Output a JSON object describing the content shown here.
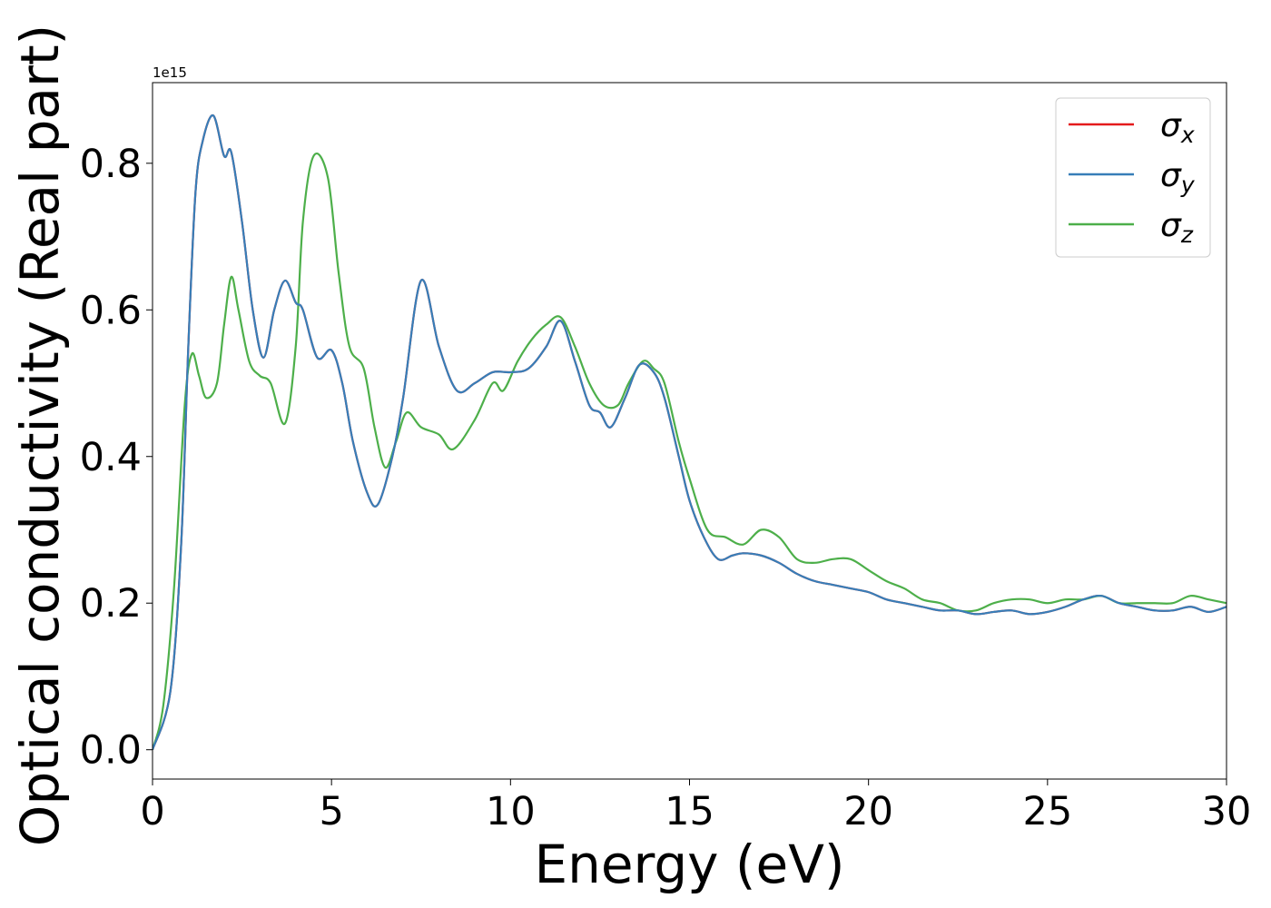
{
  "chart_data": {
    "type": "line",
    "title": "",
    "xlabel": "Energy (eV)",
    "ylabel": "Optical conductivity (Real part)",
    "offset_label": "1e15",
    "scale_factor": 1000000000000000.0,
    "xlim": [
      0,
      30
    ],
    "ylim": [
      -0.04,
      0.91
    ],
    "xticks": [
      0,
      5,
      10,
      15,
      20,
      25,
      30
    ],
    "xtick_labels": [
      "0",
      "5",
      "10",
      "15",
      "20",
      "25",
      "30"
    ],
    "yticks": [
      0.0,
      0.2,
      0.4,
      0.6,
      0.8
    ],
    "ytick_labels": [
      "0.0",
      "0.2",
      "0.4",
      "0.6",
      "0.8"
    ],
    "grid": false,
    "legend_position": "top-right",
    "series": [
      {
        "name": "σx",
        "legend_symbol": "σ",
        "legend_subscript": "x",
        "color": "#e41a1c",
        "x": [
          0,
          0.5,
          0.8,
          1.0,
          1.2,
          1.4,
          1.7,
          2.0,
          2.2,
          2.5,
          2.8,
          3.1,
          3.4,
          3.7,
          4.0,
          4.2,
          4.6,
          5.0,
          5.3,
          5.6,
          6.0,
          6.3,
          6.7,
          7.0,
          7.5,
          8.0,
          8.5,
          9.0,
          9.5,
          10.0,
          10.5,
          11.0,
          11.4,
          11.8,
          12.2,
          12.5,
          12.8,
          13.2,
          13.6,
          14.0,
          14.3,
          14.7,
          15.0,
          15.4,
          15.8,
          16.2,
          16.5,
          17.0,
          17.5,
          18.0,
          18.5,
          19.0,
          19.5,
          20.0,
          20.5,
          21.0,
          21.5,
          22.0,
          22.5,
          23.0,
          23.5,
          24.0,
          24.5,
          25.0,
          25.5,
          26.0,
          26.5,
          27.0,
          27.5,
          28.0,
          28.5,
          29.0,
          29.5,
          30.0
        ],
        "y": [
          0.0,
          0.08,
          0.28,
          0.55,
          0.76,
          0.83,
          0.865,
          0.81,
          0.815,
          0.72,
          0.6,
          0.535,
          0.6,
          0.64,
          0.61,
          0.6,
          0.535,
          0.545,
          0.5,
          0.42,
          0.35,
          0.335,
          0.4,
          0.48,
          0.64,
          0.55,
          0.49,
          0.5,
          0.515,
          0.515,
          0.52,
          0.55,
          0.585,
          0.53,
          0.47,
          0.46,
          0.44,
          0.48,
          0.525,
          0.515,
          0.48,
          0.4,
          0.34,
          0.29,
          0.26,
          0.265,
          0.268,
          0.265,
          0.255,
          0.24,
          0.23,
          0.225,
          0.22,
          0.215,
          0.205,
          0.2,
          0.195,
          0.19,
          0.19,
          0.185,
          0.188,
          0.19,
          0.185,
          0.188,
          0.195,
          0.205,
          0.21,
          0.2,
          0.195,
          0.19,
          0.19,
          0.195,
          0.188,
          0.195
        ]
      },
      {
        "name": "σy",
        "legend_symbol": "σ",
        "legend_subscript": "y",
        "color": "#377eb8",
        "x": [
          0,
          0.5,
          0.8,
          1.0,
          1.2,
          1.4,
          1.7,
          2.0,
          2.2,
          2.5,
          2.8,
          3.1,
          3.4,
          3.7,
          4.0,
          4.2,
          4.6,
          5.0,
          5.3,
          5.6,
          6.0,
          6.3,
          6.7,
          7.0,
          7.5,
          8.0,
          8.5,
          9.0,
          9.5,
          10.0,
          10.5,
          11.0,
          11.4,
          11.8,
          12.2,
          12.5,
          12.8,
          13.2,
          13.6,
          14.0,
          14.3,
          14.7,
          15.0,
          15.4,
          15.8,
          16.2,
          16.5,
          17.0,
          17.5,
          18.0,
          18.5,
          19.0,
          19.5,
          20.0,
          20.5,
          21.0,
          21.5,
          22.0,
          22.5,
          23.0,
          23.5,
          24.0,
          24.5,
          25.0,
          25.5,
          26.0,
          26.5,
          27.0,
          27.5,
          28.0,
          28.5,
          29.0,
          29.5,
          30.0
        ],
        "y": [
          0.0,
          0.08,
          0.28,
          0.55,
          0.76,
          0.83,
          0.865,
          0.81,
          0.815,
          0.72,
          0.6,
          0.535,
          0.6,
          0.64,
          0.61,
          0.6,
          0.535,
          0.545,
          0.5,
          0.42,
          0.35,
          0.335,
          0.4,
          0.48,
          0.64,
          0.55,
          0.49,
          0.5,
          0.515,
          0.515,
          0.52,
          0.55,
          0.585,
          0.53,
          0.47,
          0.46,
          0.44,
          0.48,
          0.525,
          0.515,
          0.48,
          0.4,
          0.34,
          0.29,
          0.26,
          0.265,
          0.268,
          0.265,
          0.255,
          0.24,
          0.23,
          0.225,
          0.22,
          0.215,
          0.205,
          0.2,
          0.195,
          0.19,
          0.19,
          0.185,
          0.188,
          0.19,
          0.185,
          0.188,
          0.195,
          0.205,
          0.21,
          0.2,
          0.195,
          0.19,
          0.19,
          0.195,
          0.188,
          0.195
        ]
      },
      {
        "name": "σz",
        "legend_symbol": "σ",
        "legend_subscript": "z",
        "color": "#4daf4a",
        "x": [
          0,
          0.3,
          0.6,
          0.9,
          1.1,
          1.3,
          1.5,
          1.8,
          2.0,
          2.2,
          2.4,
          2.7,
          3.0,
          3.3,
          3.7,
          4.0,
          4.2,
          4.5,
          4.9,
          5.2,
          5.5,
          5.9,
          6.2,
          6.5,
          6.8,
          7.1,
          7.5,
          8.0,
          8.4,
          9.0,
          9.5,
          9.8,
          10.2,
          10.6,
          11.0,
          11.4,
          11.8,
          12.2,
          12.6,
          13.0,
          13.3,
          13.7,
          14.0,
          14.3,
          14.7,
          15.0,
          15.5,
          16.0,
          16.5,
          17.0,
          17.5,
          18.0,
          18.5,
          19.0,
          19.5,
          20.0,
          20.5,
          21.0,
          21.5,
          22.0,
          22.5,
          23.0,
          23.5,
          24.0,
          24.5,
          25.0,
          25.5,
          26.0,
          26.5,
          27.0,
          27.5,
          28.0,
          28.5,
          29.0,
          29.5,
          30.0
        ],
        "y": [
          0.0,
          0.06,
          0.22,
          0.47,
          0.54,
          0.51,
          0.48,
          0.5,
          0.58,
          0.645,
          0.6,
          0.53,
          0.51,
          0.5,
          0.445,
          0.55,
          0.72,
          0.81,
          0.78,
          0.65,
          0.55,
          0.52,
          0.44,
          0.385,
          0.42,
          0.46,
          0.44,
          0.43,
          0.41,
          0.45,
          0.5,
          0.49,
          0.53,
          0.56,
          0.58,
          0.59,
          0.55,
          0.5,
          0.47,
          0.47,
          0.5,
          0.53,
          0.52,
          0.5,
          0.42,
          0.37,
          0.3,
          0.29,
          0.28,
          0.3,
          0.29,
          0.26,
          0.255,
          0.26,
          0.26,
          0.245,
          0.23,
          0.22,
          0.205,
          0.2,
          0.19,
          0.19,
          0.2,
          0.205,
          0.205,
          0.2,
          0.205,
          0.205,
          0.21,
          0.2,
          0.2,
          0.2,
          0.2,
          0.21,
          0.205,
          0.2
        ]
      }
    ]
  }
}
